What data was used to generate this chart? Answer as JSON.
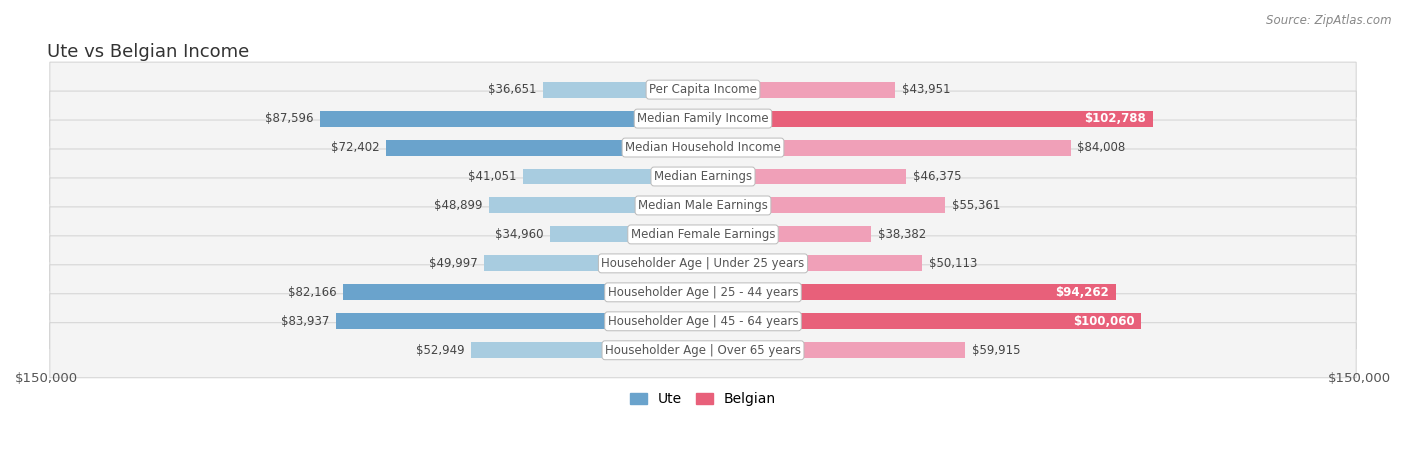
{
  "title": "Ute vs Belgian Income",
  "source": "Source: ZipAtlas.com",
  "categories": [
    "Per Capita Income",
    "Median Family Income",
    "Median Household Income",
    "Median Earnings",
    "Median Male Earnings",
    "Median Female Earnings",
    "Householder Age | Under 25 years",
    "Householder Age | 25 - 44 years",
    "Householder Age | 45 - 64 years",
    "Householder Age | Over 65 years"
  ],
  "ute_values": [
    36651,
    87596,
    72402,
    41051,
    48899,
    34960,
    49997,
    82166,
    83937,
    52949
  ],
  "belgian_values": [
    43951,
    102788,
    84008,
    46375,
    55361,
    38382,
    50113,
    94262,
    100060,
    59915
  ],
  "ute_labels": [
    "$36,651",
    "$87,596",
    "$72,402",
    "$41,051",
    "$48,899",
    "$34,960",
    "$49,997",
    "$82,166",
    "$83,937",
    "$52,949"
  ],
  "belgian_labels": [
    "$43,951",
    "$102,788",
    "$84,008",
    "$46,375",
    "$55,361",
    "$38,382",
    "$50,113",
    "$94,262",
    "$100,060",
    "$59,915"
  ],
  "ute_color_dark": "#6aa3cc",
  "ute_color_light": "#a8cce0",
  "belgian_color_dark": "#e8607a",
  "belgian_color_light": "#f0a0b8",
  "ute_dark_threshold": 70000,
  "belgian_dark_threshold": 88000,
  "max_val": 150000,
  "xlabel_left": "$150,000",
  "xlabel_right": "$150,000",
  "title_fontsize": 13,
  "label_fontsize": 8.5,
  "category_fontsize": 8.5,
  "source_fontsize": 8.5
}
